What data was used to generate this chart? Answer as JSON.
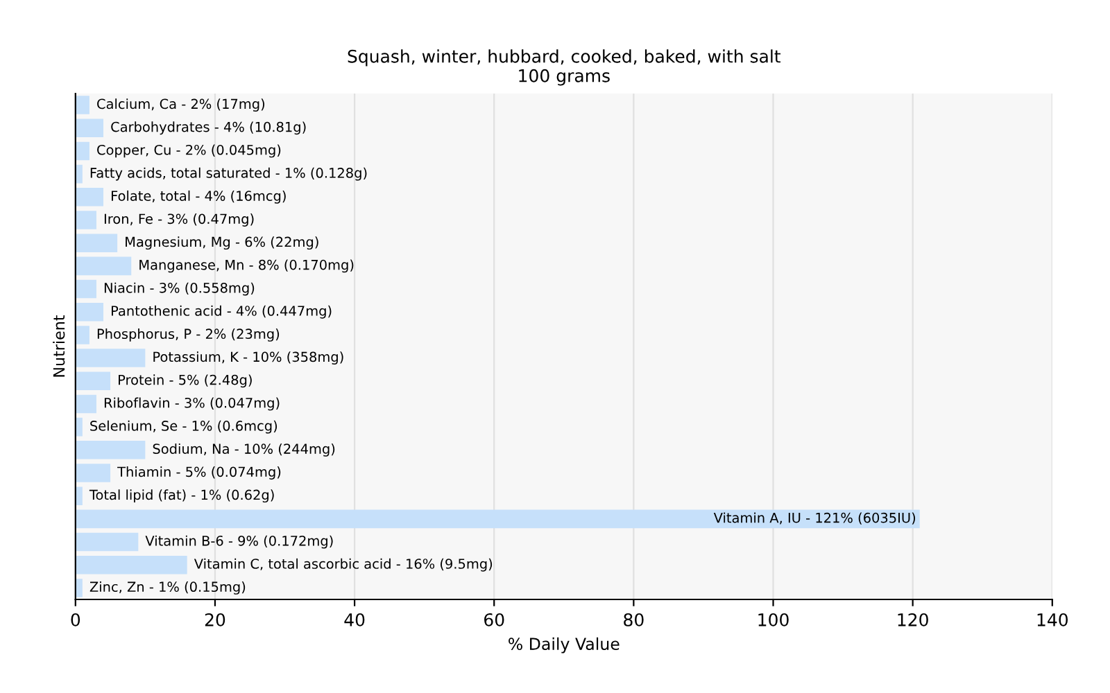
{
  "chart_data": {
    "type": "bar",
    "orientation": "horizontal",
    "title": "Squash, winter, hubbard, cooked, baked, with salt\n100 grams",
    "xlabel": "% Daily Value",
    "ylabel": "Nutrient",
    "categories": [
      "Calcium, Ca - 2% (17mg)",
      "Carbohydrates - 4% (10.81g)",
      "Copper, Cu - 2% (0.045mg)",
      "Fatty acids, total saturated - 1% (0.128g)",
      "Folate, total - 4% (16mcg)",
      "Iron, Fe - 3% (0.47mg)",
      "Magnesium, Mg - 6% (22mg)",
      "Manganese, Mn - 8% (0.170mg)",
      "Niacin - 3% (0.558mg)",
      "Pantothenic acid - 4% (0.447mg)",
      "Phosphorus, P - 2% (23mg)",
      "Potassium, K - 10% (358mg)",
      "Protein - 5% (2.48g)",
      "Riboflavin - 3% (0.047mg)",
      "Selenium, Se - 1% (0.6mcg)",
      "Sodium, Na - 10% (244mg)",
      "Thiamin - 5% (0.074mg)",
      "Total lipid (fat) - 1% (0.62g)",
      "Vitamin A, IU - 121% (6035IU)",
      "Vitamin B-6 - 9% (0.172mg)",
      "Vitamin C, total ascorbic acid - 16% (9.5mg)",
      "Zinc, Zn - 1% (0.15mg)"
    ],
    "values": [
      2,
      4,
      2,
      1,
      4,
      3,
      6,
      8,
      3,
      4,
      2,
      10,
      5,
      3,
      1,
      10,
      5,
      1,
      121,
      9,
      16,
      1
    ],
    "color": "#c6e0fa",
    "xlim": [
      0,
      140
    ],
    "xticks": [
      0,
      20,
      40,
      60,
      80,
      100,
      120,
      140
    ],
    "grid": "x",
    "tick_labels": "x"
  }
}
